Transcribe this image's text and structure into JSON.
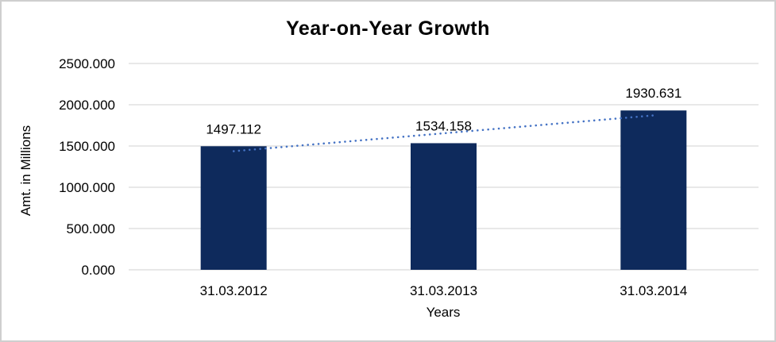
{
  "chart_data": {
    "type": "bar",
    "title": "Year-on-Year Growth",
    "xlabel": "Years",
    "ylabel": "Amt. in Millions",
    "categories": [
      "31.03.2012",
      "31.03.2013",
      "31.03.2014"
    ],
    "values": [
      1497.112,
      1534.158,
      1930.631
    ],
    "data_labels": [
      "1497.112",
      "1534.158",
      "1930.631"
    ],
    "ylim": [
      0,
      2500
    ],
    "ytick_labels": [
      "0.000",
      "500.000",
      "1000.000",
      "1500.000",
      "2000.000",
      "2500.000"
    ],
    "grid": "horizontal",
    "legend": "none",
    "trendline": {
      "type": "linear",
      "style": "dotted"
    },
    "colors": {
      "bar": "#0E2A5C",
      "trendline": "#4472C4",
      "gridline": "#D9D9D9",
      "text": "#000000",
      "background": "#FFFFFF",
      "frame_border": "#CFCFCF"
    }
  }
}
